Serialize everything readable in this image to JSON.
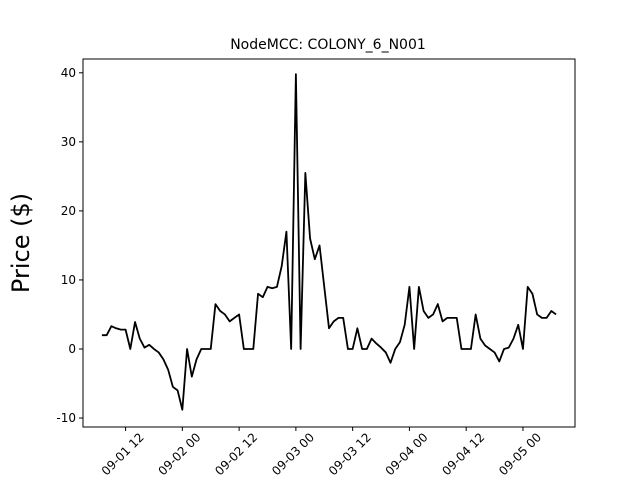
{
  "chart_data": {
    "type": "line",
    "title": "NodeMCC: COLONY_6_N001",
    "y_label": "Price ($)",
    "x": [
      "09-01 07",
      "09-01 08",
      "09-01 09",
      "09-01 10",
      "09-01 11",
      "09-01 12",
      "09-01 13",
      "09-01 14",
      "09-01 15",
      "09-01 16",
      "09-01 17",
      "09-01 18",
      "09-01 19",
      "09-01 20",
      "09-01 21",
      "09-01 22",
      "09-01 23",
      "09-02 00",
      "09-02 01",
      "09-02 02",
      "09-02 03",
      "09-02 04",
      "09-02 05",
      "09-02 06",
      "09-02 07",
      "09-02 08",
      "09-02 09",
      "09-02 10",
      "09-02 11",
      "09-02 12",
      "09-02 13",
      "09-02 14",
      "09-02 15",
      "09-02 16",
      "09-02 17",
      "09-02 18",
      "09-02 19",
      "09-02 20",
      "09-02 21",
      "09-02 22",
      "09-02 23",
      "09-03 00",
      "09-03 01",
      "09-03 02",
      "09-03 03",
      "09-03 04",
      "09-03 05",
      "09-03 06",
      "09-03 07",
      "09-03 08",
      "09-03 09",
      "09-03 10",
      "09-03 11",
      "09-03 12",
      "09-03 13",
      "09-03 14",
      "09-03 15",
      "09-03 16",
      "09-03 17",
      "09-03 18",
      "09-03 19",
      "09-03 20",
      "09-03 21",
      "09-03 22",
      "09-03 23",
      "09-04 00",
      "09-04 01",
      "09-04 02",
      "09-04 03",
      "09-04 04",
      "09-04 05",
      "09-04 06",
      "09-04 07",
      "09-04 08",
      "09-04 09",
      "09-04 10",
      "09-04 11",
      "09-04 12",
      "09-04 13",
      "09-04 14",
      "09-04 15",
      "09-04 16",
      "09-04 17",
      "09-04 18",
      "09-04 19",
      "09-04 20",
      "09-04 21",
      "09-04 22",
      "09-04 23",
      "09-05 00",
      "09-05 01",
      "09-05 02",
      "09-05 03",
      "09-05 04",
      "09-05 05",
      "09-05 06",
      "09-05 07"
    ],
    "series": [
      {
        "color": "#000000",
        "values": [
          2,
          2,
          3.3,
          3,
          2.8,
          2.8,
          0,
          3.9,
          1.5,
          0.2,
          0.6,
          0,
          -0.5,
          -1.5,
          -3,
          -5.5,
          -6,
          -8.8,
          0,
          -4,
          -1.5,
          0,
          0,
          0,
          6.5,
          5.5,
          5,
          4,
          4.5,
          5,
          0,
          0,
          0,
          8,
          7.5,
          9,
          8.8,
          9,
          12,
          17,
          0,
          39.8,
          0,
          25.5,
          16,
          13,
          15,
          9,
          3,
          4,
          4.5,
          4.5,
          0,
          0,
          3,
          0,
          0,
          1.5,
          0.8,
          0.2,
          -0.5,
          -2,
          0,
          1,
          3.5,
          9,
          0,
          9,
          5.5,
          4.5,
          5,
          6.5,
          4,
          4.5,
          4.5,
          4.5,
          0,
          0,
          0,
          5,
          1.5,
          0.5,
          0,
          -0.5,
          -1.8,
          0,
          0.2,
          1.5,
          3.5,
          0,
          9,
          8,
          5,
          4.5,
          4.5,
          5.5,
          5
        ]
      }
    ],
    "xlim": [
      "09-01 03",
      "09-05 11"
    ],
    "xticks": [
      "09-01 12",
      "09-02 00",
      "09-02 12",
      "09-03 00",
      "09-03 12",
      "09-04 00",
      "09-04 12",
      "09-05 00"
    ],
    "ylim": [
      -11.3,
      42.0
    ],
    "yticks": [
      -10,
      0,
      10,
      20,
      30,
      40
    ]
  }
}
